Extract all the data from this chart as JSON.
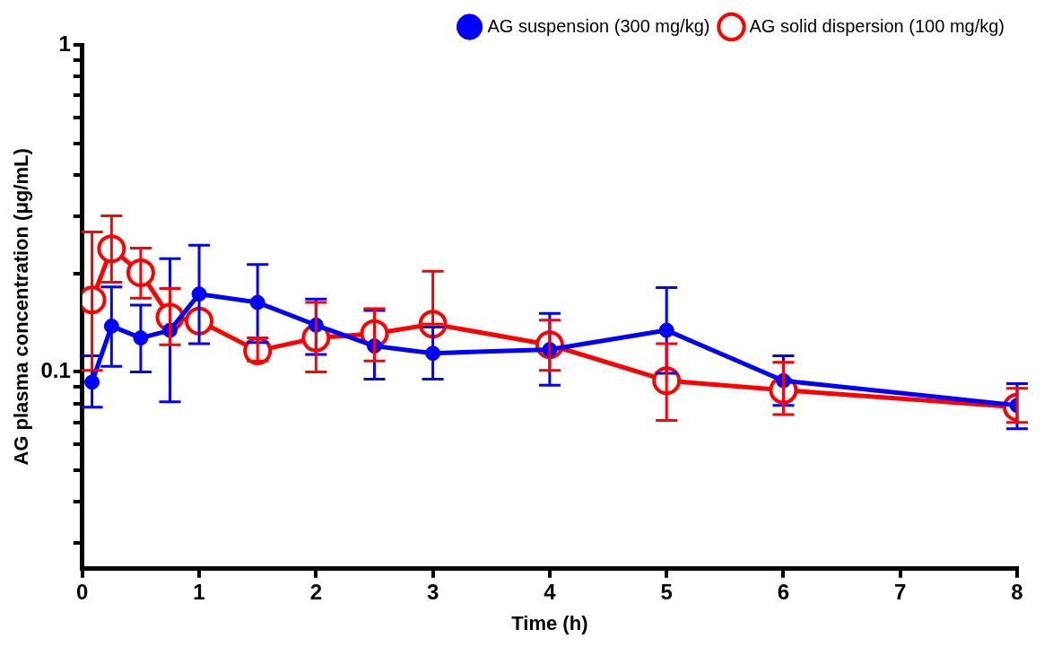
{
  "chart_data": {
    "type": "line",
    "xlabel": "Time (h)",
    "ylabel": "AG plasma concentration (μg/mL)",
    "log": "y",
    "grid": false,
    "legend": "top right",
    "marker": "circle",
    "line_style": "solid",
    "xlim": [
      0,
      8
    ],
    "xticks": [
      0,
      1,
      2,
      3,
      4,
      5,
      6,
      7,
      8
    ],
    "ylim": [
      0.025,
      1
    ],
    "yticks": [
      {
        "value": 0.03,
        "label": null
      },
      {
        "value": 0.04,
        "label": null
      },
      {
        "value": 0.05,
        "label": null
      },
      {
        "value": 0.06,
        "label": null
      },
      {
        "value": 0.07,
        "label": null
      },
      {
        "value": 0.08,
        "label": null
      },
      {
        "value": 0.09,
        "label": null
      },
      0.1,
      {
        "value": 0.2,
        "label": null
      },
      {
        "value": 0.3,
        "label": null
      },
      {
        "value": 0.4,
        "label": null
      },
      {
        "value": 0.5,
        "label": null
      },
      {
        "value": 0.6,
        "label": null
      },
      {
        "value": 0.7,
        "label": null
      },
      {
        "value": 0.8,
        "label": null
      },
      {
        "value": 0.9,
        "label": null
      },
      1
    ],
    "series": [
      {
        "name": "AG suspension (300 mg/kg)",
        "color": "#0000ff",
        "x": [
          0.083,
          0.25,
          0.5,
          0.75,
          1,
          1.5,
          2,
          2.5,
          3,
          4,
          5,
          6,
          8
        ],
        "values": [
          0.093,
          0.138,
          0.127,
          0.134,
          0.173,
          0.163,
          0.139,
          0.12,
          0.114,
          0.117,
          0.134,
          0.094,
          0.079
        ],
        "errors": [
          [
            0.078,
            0.112
          ],
          [
            0.104,
            0.182
          ],
          [
            0.1,
            0.16
          ],
          [
            0.081,
            0.222
          ],
          [
            0.122,
            0.244
          ],
          [
            0.123,
            0.213
          ],
          [
            0.113,
            0.167
          ],
          [
            0.095,
            0.154
          ],
          [
            0.095,
            0.137
          ],
          [
            0.091,
            0.151
          ],
          [
            0.099,
            0.181
          ],
          [
            0.079,
            0.112
          ],
          [
            0.067,
            0.092
          ]
        ]
      },
      {
        "name": "AG solid dispersion (100 mg/kg)",
        "color": "#ff0000",
        "x": [
          0.083,
          0.25,
          0.5,
          0.75,
          1,
          1.5,
          2,
          2.5,
          3,
          4,
          5,
          6,
          8
        ],
        "values": [
          0.166,
          0.238,
          0.201,
          0.147,
          0.143,
          0.116,
          0.127,
          0.131,
          0.14,
          0.121,
          0.094,
          0.088,
          0.078
        ],
        "errors": [
          [
            0.101,
            0.268
          ],
          [
            0.188,
            0.3
          ],
          [
            0.168,
            0.239
          ],
          [
            0.121,
            0.18
          ],
          null,
          [
            0.108,
            0.127
          ],
          [
            0.1,
            0.163
          ],
          [
            0.108,
            0.156
          ],
          [
            0.14,
            0.203
          ],
          [
            0.101,
            0.144
          ],
          [
            0.071,
            0.122
          ],
          [
            0.074,
            0.107
          ],
          [
            0.07,
            0.089
          ]
        ]
      }
    ]
  }
}
